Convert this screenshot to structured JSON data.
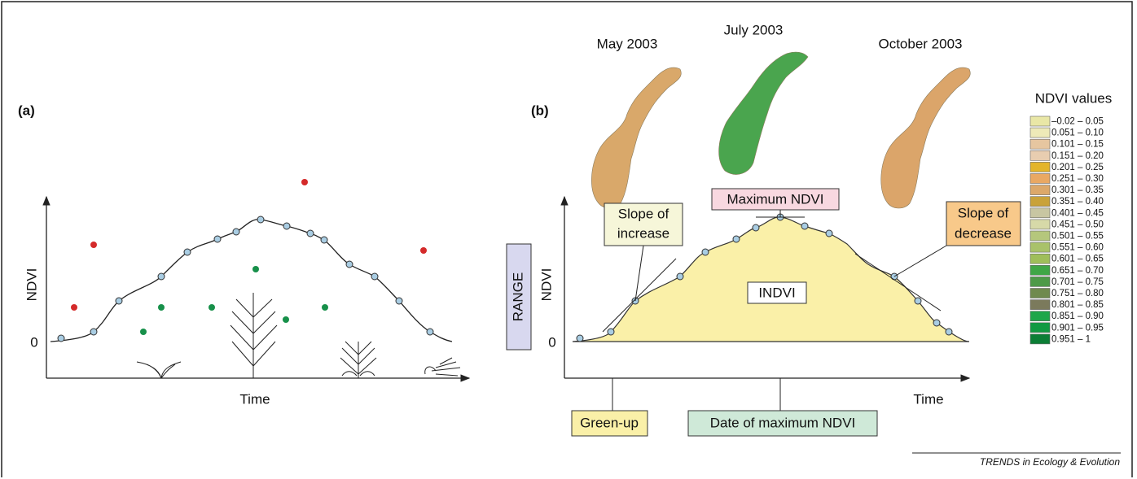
{
  "panel_a": {
    "label": "(a)",
    "y_axis": "NDVI",
    "zero": "0",
    "x_axis": "Time"
  },
  "panel_b": {
    "label": "(b)",
    "maps": [
      "May 2003",
      "July 2003",
      "October 2003"
    ],
    "range": "RANGE",
    "y_axis": "NDVI",
    "zero": "0",
    "x_axis": "Time",
    "slope_increase": [
      "Slope of",
      "increase"
    ],
    "maximum": "Maximum NDVI",
    "slope_decrease": [
      "Slope of",
      "decrease"
    ],
    "integral": "INDVI",
    "green_up": "Green-up",
    "date_max": "Date of maximum NDVI"
  },
  "legend": {
    "title": "NDVI values",
    "items": [
      {
        "label": "–0.02 – 0.05",
        "color": "#e9e7a6"
      },
      {
        "label": "0.051 – 0.10",
        "color": "#eeeab8"
      },
      {
        "label": "0.101 – 0.15",
        "color": "#e6c6a0"
      },
      {
        "label": "0.151 – 0.20",
        "color": "#e8cdb0"
      },
      {
        "label": "0.201 – 0.25",
        "color": "#e3b52a"
      },
      {
        "label": "0.251 – 0.30",
        "color": "#e9a863"
      },
      {
        "label": "0.301 – 0.35",
        "color": "#dca86a"
      },
      {
        "label": "0.351 – 0.40",
        "color": "#c9a23a"
      },
      {
        "label": "0.401 – 0.45",
        "color": "#c8c6a2"
      },
      {
        "label": "0.451 – 0.50",
        "color": "#d7d9a8"
      },
      {
        "label": "0.501 – 0.55",
        "color": "#b5c77c"
      },
      {
        "label": "0.551 – 0.60",
        "color": "#a9c26a"
      },
      {
        "label": "0.601 – 0.65",
        "color": "#9fbe5a"
      },
      {
        "label": "0.651 – 0.70",
        "color": "#3fa646"
      },
      {
        "label": "0.701 – 0.75",
        "color": "#4e9a48"
      },
      {
        "label": "0.751 – 0.80",
        "color": "#6f8a4e"
      },
      {
        "label": "0.801 – 0.85",
        "color": "#7b7a5c"
      },
      {
        "label": "0.851 – 0.90",
        "color": "#1ea64a"
      },
      {
        "label": "0.901 – 0.95",
        "color": "#119a42"
      },
      {
        "label": "0.951 – 1",
        "color": "#0c7e36"
      }
    ]
  },
  "credit": "TRENDS in Ecology & Evolution"
}
